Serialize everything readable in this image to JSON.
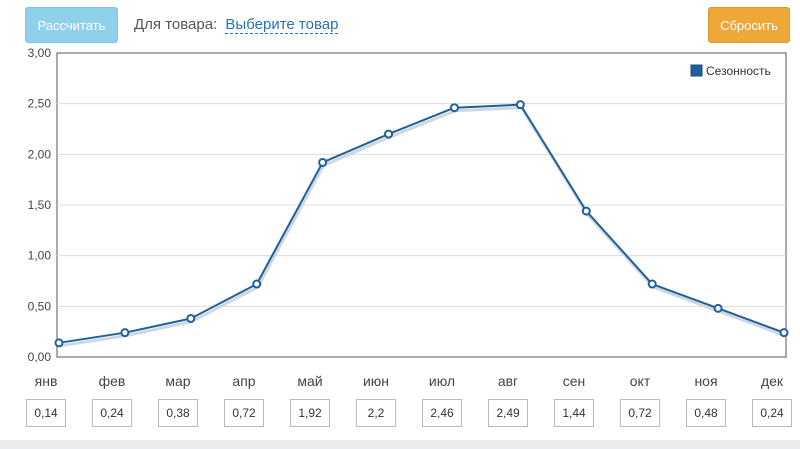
{
  "toolbar": {
    "calculate_label": "Рассчитать",
    "product_label": "Для товара:",
    "product_link": "Выберите товар",
    "reset_label": "Сбросить"
  },
  "colors": {
    "calculate_bg": "#8fd1ea",
    "reset_bg": "#eea838",
    "series": "#1f5f9a"
  },
  "chart_data": {
    "type": "line",
    "categories": [
      "янв",
      "фев",
      "мар",
      "апр",
      "май",
      "июн",
      "июл",
      "авг",
      "сен",
      "окт",
      "ноя",
      "дек"
    ],
    "series": [
      {
        "name": "Сезонность",
        "values": [
          0.14,
          0.24,
          0.38,
          0.72,
          1.92,
          2.2,
          2.46,
          2.49,
          1.44,
          0.72,
          0.48,
          0.24
        ]
      }
    ],
    "y_ticks": [
      "0,00",
      "0,50",
      "1,00",
      "1,50",
      "2,00",
      "2,50",
      "3,00"
    ],
    "ylim": [
      0,
      3
    ],
    "grid": true,
    "legend_position": "top-right"
  },
  "inputs": [
    "0,14",
    "0,24",
    "0,38",
    "0,72",
    "1,92",
    "2,2",
    "2,46",
    "2,49",
    "1,44",
    "0,72",
    "0,48",
    "0,24"
  ]
}
